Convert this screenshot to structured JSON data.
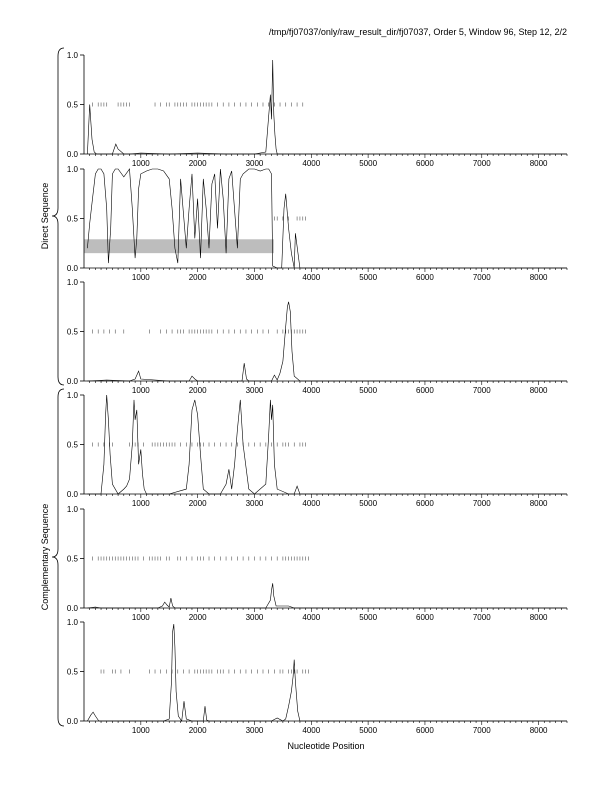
{
  "header": {
    "title": "/tmp/fj07037/only/raw_result_dir/fj07037, Order 5, Window 96, Step 12, 2/2"
  },
  "brackets": {
    "direct": "Direct Sequence",
    "complementary": "Complementary Sequence"
  },
  "xlabel": "Nucleotide Position",
  "chart_data": [
    {
      "type": "line",
      "panel": "direct-frame-1",
      "xlim": [
        0,
        8500
      ],
      "ylim": [
        0,
        1
      ],
      "xticks": [
        1000,
        2000,
        3000,
        4000,
        5000,
        6000,
        7000,
        8000
      ],
      "yticks": [
        "0.0",
        "0.5",
        "1.0"
      ],
      "x": [
        60,
        100,
        140,
        180,
        220,
        260,
        300,
        400,
        500,
        560,
        600,
        700,
        800,
        1000,
        1500,
        2000,
        2500,
        3000,
        3200,
        3280,
        3300,
        3320,
        3340,
        3360,
        3380,
        3400,
        3500,
        4000,
        8500
      ],
      "y": [
        0.0,
        0.5,
        0.15,
        0.02,
        0.0,
        0.0,
        0.0,
        0.0,
        0.0,
        0.1,
        0.05,
        0.0,
        0.0,
        0.01,
        0.0,
        0.01,
        0.0,
        0.0,
        0.02,
        0.6,
        0.35,
        0.95,
        0.4,
        0.2,
        0.05,
        0.0,
        0.0,
        0.0,
        0.0
      ],
      "stops": [
        150,
        250,
        300,
        350,
        400,
        600,
        650,
        700,
        750,
        800,
        1250,
        1350,
        1450,
        1500,
        1600,
        1650,
        1700,
        1750,
        1800,
        1900,
        1950,
        2000,
        2050,
        2100,
        2150,
        2200,
        2250,
        2350,
        2450,
        2550,
        2650,
        2750,
        2850,
        2950,
        3050,
        3150,
        3250,
        3350,
        3450,
        3550,
        3650,
        3750,
        3850
      ]
    },
    {
      "type": "line",
      "panel": "direct-frame-2",
      "xlim": [
        0,
        8500
      ],
      "ylim": [
        0,
        1
      ],
      "xticks": [
        1000,
        2000,
        3000,
        4000,
        5000,
        6000,
        7000,
        8000
      ],
      "yticks": [
        "0.0",
        "0.5",
        "1.0"
      ],
      "x": [
        60,
        100,
        150,
        200,
        250,
        300,
        350,
        400,
        430,
        470,
        500,
        550,
        600,
        700,
        800,
        850,
        900,
        930,
        960,
        1000,
        1100,
        1200,
        1300,
        1400,
        1500,
        1550,
        1600,
        1650,
        1700,
        1800,
        1850,
        1900,
        1950,
        2000,
        2050,
        2100,
        2150,
        2200,
        2250,
        2300,
        2350,
        2400,
        2450,
        2500,
        2550,
        2600,
        2700,
        2750,
        2800,
        2900,
        3000,
        3100,
        3200,
        3250,
        3300,
        3320,
        3400,
        3480,
        3520,
        3550,
        3600,
        3650,
        3700,
        3720,
        3800,
        8500
      ],
      "y": [
        0.2,
        0.45,
        0.7,
        0.95,
        1.0,
        1.0,
        0.95,
        0.6,
        0.05,
        0.4,
        0.95,
        1.0,
        1.0,
        0.92,
        1.0,
        0.6,
        0.1,
        0.3,
        0.8,
        0.95,
        0.98,
        1.0,
        1.0,
        0.98,
        0.9,
        0.6,
        0.2,
        0.05,
        0.9,
        0.2,
        0.6,
        0.95,
        0.3,
        0.7,
        0.1,
        0.9,
        0.6,
        0.2,
        0.85,
        0.95,
        0.4,
        1.0,
        0.7,
        0.15,
        0.9,
        0.98,
        0.2,
        0.9,
        0.95,
        1.0,
        1.0,
        0.98,
        1.0,
        1.0,
        0.95,
        0.02,
        0.0,
        0.0,
        0.6,
        0.75,
        0.4,
        0.15,
        0.0,
        0.35,
        0.0,
        0.0
      ],
      "stops": [
        3350,
        3400,
        3500,
        3600,
        3750,
        3800,
        3850,
        3900
      ],
      "band": {
        "x0": 0,
        "x1": 3340,
        "y0": 0.15,
        "y1": 0.29
      }
    },
    {
      "type": "line",
      "panel": "direct-frame-3",
      "xlim": [
        0,
        8500
      ],
      "ylim": [
        0,
        1
      ],
      "xticks": [
        1000,
        2000,
        3000,
        4000,
        5000,
        6000,
        7000,
        8000
      ],
      "yticks": [
        "0.0",
        "0.5",
        "1.0"
      ],
      "x": [
        60,
        400,
        800,
        900,
        960,
        1000,
        1500,
        1850,
        1900,
        1950,
        2000,
        2500,
        2780,
        2820,
        2860,
        2900,
        3000,
        3300,
        3350,
        3400,
        3450,
        3500,
        3550,
        3580,
        3600,
        3630,
        3660,
        3700,
        3800,
        4000,
        8500
      ],
      "y": [
        0.0,
        0.01,
        0.0,
        0.02,
        0.1,
        0.02,
        0.0,
        0.0,
        0.05,
        0.02,
        0.0,
        0.0,
        0.0,
        0.18,
        0.02,
        0.0,
        0.0,
        0.0,
        0.06,
        0.01,
        0.08,
        0.2,
        0.55,
        0.75,
        0.8,
        0.7,
        0.3,
        0.05,
        0.0,
        0.0,
        0.0
      ],
      "stops": [
        150,
        250,
        350,
        450,
        550,
        700,
        1150,
        1350,
        1450,
        1550,
        1650,
        1700,
        1750,
        1850,
        1900,
        1950,
        2000,
        2050,
        2100,
        2150,
        2200,
        2250,
        2350,
        2450,
        2550,
        2650,
        2750,
        2850,
        2950,
        3050,
        3150,
        3250,
        3400,
        3500,
        3550,
        3600,
        3650,
        3700,
        3750,
        3800,
        3850,
        3900
      ]
    },
    {
      "type": "line",
      "panel": "complementary-frame-1",
      "xlim": [
        0,
        8500
      ],
      "ylim": [
        0,
        1
      ],
      "xticks": [
        1000,
        2000,
        3000,
        4000,
        5000,
        6000,
        7000,
        8000
      ],
      "yticks": [
        "0.0",
        "0.5",
        "1.0"
      ],
      "x": [
        60,
        300,
        350,
        380,
        400,
        430,
        460,
        500,
        600,
        700,
        750,
        800,
        850,
        880,
        900,
        930,
        960,
        1000,
        1030,
        1060,
        1100,
        1150,
        1500,
        1800,
        1850,
        1900,
        1950,
        2000,
        2050,
        2100,
        2200,
        2400,
        2500,
        2550,
        2600,
        2650,
        2700,
        2750,
        2800,
        2900,
        3000,
        3200,
        3250,
        3280,
        3300,
        3320,
        3350,
        3400,
        3600,
        3700,
        3750,
        3800,
        8500
      ],
      "y": [
        0.0,
        0.0,
        0.3,
        0.8,
        1.0,
        0.75,
        0.4,
        0.1,
        0.0,
        0.05,
        0.08,
        0.15,
        0.5,
        0.95,
        0.75,
        0.85,
        0.3,
        0.45,
        0.2,
        0.05,
        0.0,
        0.0,
        0.0,
        0.05,
        0.3,
        0.85,
        0.95,
        0.8,
        0.4,
        0.05,
        0.0,
        0.0,
        0.1,
        0.25,
        0.05,
        0.3,
        0.65,
        0.95,
        0.5,
        0.05,
        0.0,
        0.1,
        0.6,
        0.95,
        0.75,
        0.9,
        0.3,
        0.05,
        0.0,
        0.0,
        0.08,
        0.0,
        0.0
      ],
      "stops": [
        150,
        250,
        350,
        450,
        500,
        800,
        850,
        900,
        950,
        1050,
        1200,
        1250,
        1300,
        1350,
        1400,
        1450,
        1500,
        1550,
        1600,
        1700,
        1800,
        1900,
        2000,
        2050,
        2100,
        2200,
        2300,
        2400,
        2500,
        2600,
        2700,
        2800,
        2900,
        3000,
        3100,
        3200,
        3300,
        3400,
        3500,
        3550,
        3600,
        3700,
        3800,
        3850,
        3900
      ]
    },
    {
      "type": "line",
      "panel": "complementary-frame-2",
      "xlim": [
        0,
        8500
      ],
      "ylim": [
        0,
        1
      ],
      "xticks": [
        1000,
        2000,
        3000,
        4000,
        5000,
        6000,
        7000,
        8000
      ],
      "yticks": [
        "0.0",
        "0.5",
        "1.0"
      ],
      "x": [
        60,
        200,
        300,
        1000,
        1300,
        1380,
        1420,
        1460,
        1500,
        1530,
        1560,
        1600,
        2000,
        3200,
        3280,
        3300,
        3320,
        3340,
        3380,
        3600,
        3700,
        8500
      ],
      "y": [
        0.0,
        0.01,
        0.0,
        0.0,
        0.0,
        0.02,
        0.06,
        0.03,
        0.01,
        0.1,
        0.02,
        0.0,
        0.0,
        0.0,
        0.08,
        0.18,
        0.25,
        0.12,
        0.02,
        0.02,
        0.0,
        0.0
      ],
      "stops": [
        150,
        250,
        300,
        350,
        400,
        450,
        500,
        550,
        600,
        650,
        700,
        750,
        800,
        850,
        900,
        950,
        1050,
        1150,
        1200,
        1250,
        1300,
        1350,
        1450,
        1500,
        1650,
        1700,
        1800,
        1900,
        2000,
        2050,
        2100,
        2200,
        2300,
        2400,
        2500,
        2600,
        2700,
        2800,
        2900,
        3000,
        3100,
        3200,
        3300,
        3400,
        3500,
        3550,
        3600,
        3650,
        3700,
        3750,
        3800,
        3850,
        3900,
        3950
      ]
    },
    {
      "type": "line",
      "panel": "complementary-frame-3",
      "xlim": [
        0,
        8500
      ],
      "ylim": [
        0,
        1
      ],
      "xticks": [
        1000,
        2000,
        3000,
        4000,
        5000,
        6000,
        7000,
        8000
      ],
      "yticks": [
        "0.0",
        "0.5",
        "1.0"
      ],
      "x": [
        60,
        120,
        160,
        200,
        260,
        400,
        1000,
        1400,
        1500,
        1540,
        1560,
        1580,
        1600,
        1620,
        1660,
        1720,
        1760,
        1800,
        1900,
        2100,
        2130,
        2160,
        2200,
        2400,
        3000,
        3300,
        3400,
        3500,
        3550,
        3600,
        3650,
        3680,
        3700,
        3720,
        3760,
        3800,
        4000,
        8500
      ],
      "y": [
        0.0,
        0.06,
        0.09,
        0.05,
        0.0,
        0.0,
        0.0,
        0.0,
        0.02,
        0.4,
        0.9,
        0.98,
        0.75,
        0.3,
        0.05,
        0.0,
        0.2,
        0.02,
        0.0,
        0.0,
        0.15,
        0.01,
        0.0,
        0.0,
        0.0,
        0.0,
        0.03,
        0.0,
        0.02,
        0.15,
        0.3,
        0.45,
        0.62,
        0.4,
        0.1,
        0.0,
        0.0,
        0.0
      ],
      "stops": [
        300,
        350,
        500,
        550,
        650,
        800,
        1150,
        1250,
        1350,
        1450,
        1550,
        1650,
        1750,
        1850,
        1950,
        2000,
        2050,
        2100,
        2150,
        2200,
        2250,
        2350,
        2400,
        2450,
        2550,
        2650,
        2750,
        2850,
        2950,
        3050,
        3150,
        3250,
        3350,
        3450,
        3500,
        3600,
        3650,
        3700,
        3750,
        3850,
        3900,
        3950
      ]
    }
  ]
}
